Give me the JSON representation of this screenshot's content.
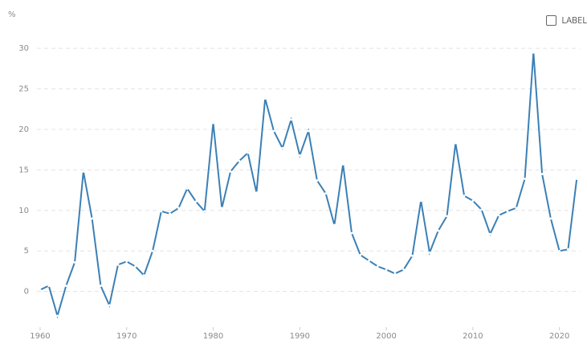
{
  "chart_data": {
    "type": "line",
    "y_unit": "%",
    "legend_label": "LABEL",
    "x": [
      1960,
      1961,
      1962,
      1963,
      1964,
      1965,
      1966,
      1967,
      1968,
      1969,
      1970,
      1971,
      1972,
      1973,
      1974,
      1975,
      1976,
      1977,
      1978,
      1979,
      1980,
      1981,
      1982,
      1983,
      1984,
      1985,
      1986,
      1987,
      1988,
      1989,
      1990,
      1991,
      1992,
      1993,
      1994,
      1995,
      1996,
      1997,
      1998,
      1999,
      2000,
      2001,
      2002,
      2003,
      2004,
      2005,
      2006,
      2007,
      2008,
      2009,
      2010,
      2011,
      2012,
      2013,
      2014,
      2015,
      2016,
      2017,
      2018,
      2019,
      2020,
      2021,
      2022
    ],
    "series": [
      {
        "color": "#3b80b6",
        "values": [
          0.2,
          0.7,
          -3.0,
          0.7,
          3.6,
          14.8,
          9.0,
          0.7,
          -1.7,
          3.3,
          3.7,
          3.1,
          2.0,
          5.0,
          9.9,
          9.6,
          10.3,
          12.7,
          11.1,
          9.9,
          20.8,
          10.3,
          14.8,
          16.1,
          17.1,
          12.2,
          23.8,
          19.8,
          17.7,
          21.2,
          16.8,
          19.8,
          13.7,
          12.1,
          8.2,
          15.7,
          7.2,
          4.5,
          3.8,
          3.1,
          2.7,
          2.2,
          2.7,
          4.4,
          11.2,
          4.8,
          7.5,
          9.3,
          18.3,
          11.8,
          11.2,
          10.1,
          7.1,
          9.4,
          9.9,
          10.3,
          13.9,
          29.5,
          14.5,
          9.0,
          5.0,
          5.2,
          13.9
        ]
      }
    ],
    "xlim": [
      1958,
      2023
    ],
    "xticks": [
      1960,
      1970,
      1980,
      1990,
      2000,
      2010,
      2020
    ],
    "ylim": [
      -4.4,
      32
    ],
    "yticks": [
      0,
      5,
      10,
      15,
      20,
      25,
      30
    ],
    "grid": true
  }
}
